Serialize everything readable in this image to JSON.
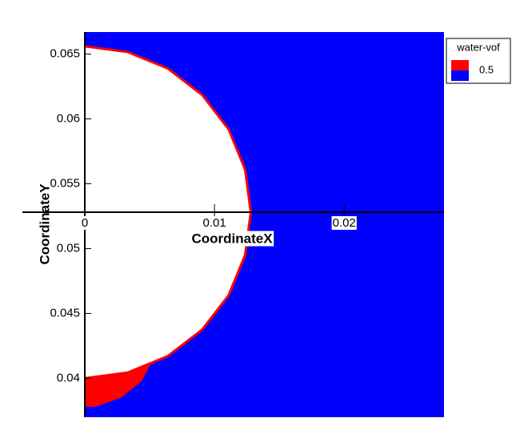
{
  "chart_data": {
    "type": "contour",
    "x_label": "CoordinateX",
    "y_label": "CoordinateY",
    "xlim": [
      0,
      0.0277
    ],
    "ylim": [
      0.037,
      0.0667
    ],
    "xticks": [
      0,
      0.01,
      0.02
    ],
    "yticks": [
      0.04,
      0.045,
      0.05,
      0.055,
      0.06,
      0.065
    ],
    "legend": {
      "title": "water-vof",
      "levels": [
        0.5
      ],
      "colors": [
        "#ff0000",
        "#0000ff"
      ]
    },
    "interface": {
      "x": [
        0,
        0.00331,
        0.0064,
        0.00905,
        0.01109,
        0.01236,
        0.0128,
        0.01236,
        0.01109,
        0.00905,
        0.0064,
        0.00331,
        0
      ],
      "y": [
        0.0656,
        0.06516,
        0.06389,
        0.06185,
        0.0592,
        0.05611,
        0.0528,
        0.04949,
        0.0464,
        0.04375,
        0.04171,
        0.04044,
        0.04
      ]
    },
    "drop": {
      "x": [
        0,
        0.003,
        0.0052,
        0.0044,
        0.0028,
        0.0008,
        0
      ],
      "y": [
        0.0401,
        0.0403,
        0.0413,
        0.0398,
        0.0385,
        0.0378,
        0.0378
      ]
    }
  }
}
